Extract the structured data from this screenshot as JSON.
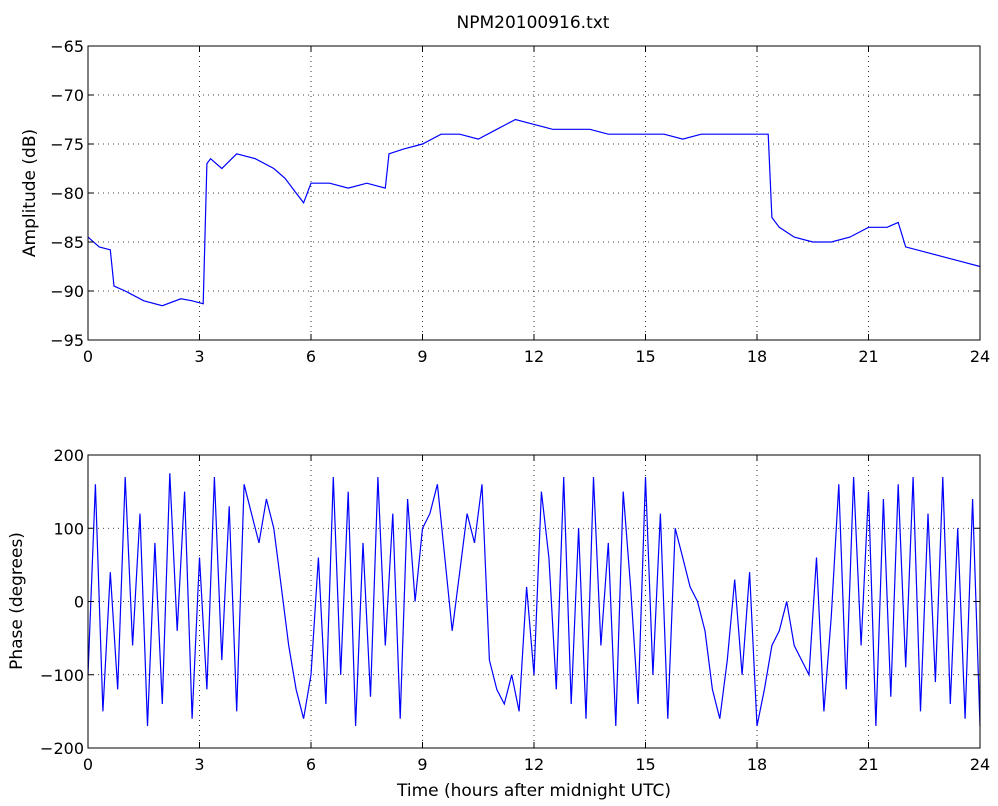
{
  "figure": {
    "title": "NPM20100916.txt"
  },
  "chart_data": [
    {
      "type": "line",
      "title": "NPM20100916.txt",
      "xlabel": "",
      "ylabel": "Amplitude (dB)",
      "xlim": [
        0,
        24
      ],
      "ylim": [
        -95,
        -65
      ],
      "x_ticks": [
        0,
        3,
        6,
        9,
        12,
        15,
        18,
        21,
        24
      ],
      "y_ticks": [
        -95,
        -90,
        -85,
        -80,
        -75,
        -70,
        -65
      ],
      "grid": true,
      "line_color": "#0000ff",
      "series": [
        {
          "x": [
            0,
            0.3,
            0.6,
            0.7,
            1.0,
            1.5,
            2.0,
            2.5,
            2.8,
            3.1,
            3.2,
            3.3,
            3.6,
            4.0,
            4.5,
            5.0,
            5.3,
            5.6,
            5.8,
            6.0,
            6.5,
            7.0,
            7.5,
            8.0,
            8.1,
            8.5,
            9.0,
            9.5,
            10.0,
            10.5,
            11.0,
            11.5,
            12.0,
            12.5,
            13.0,
            13.5,
            14.0,
            14.5,
            15.0,
            15.5,
            16.0,
            16.5,
            17.0,
            17.5,
            18.0,
            18.3,
            18.4,
            18.6,
            19.0,
            19.5,
            20.0,
            20.5,
            21.0,
            21.5,
            21.8,
            22.0,
            22.5,
            23.0,
            23.5,
            24.0
          ],
          "values": [
            -84.5,
            -85.5,
            -85.8,
            -89.5,
            -90.0,
            -91.0,
            -91.5,
            -90.8,
            -91.0,
            -91.3,
            -77.0,
            -76.5,
            -77.5,
            -76.0,
            -76.5,
            -77.5,
            -78.5,
            -80.0,
            -81.0,
            -79.0,
            -79.0,
            -79.5,
            -79.0,
            -79.5,
            -76.0,
            -75.5,
            -75.0,
            -74.0,
            -74.0,
            -74.5,
            -73.5,
            -72.5,
            -73.0,
            -73.5,
            -73.5,
            -73.5,
            -74.0,
            -74.0,
            -74.0,
            -74.0,
            -74.5,
            -74.0,
            -74.0,
            -74.0,
            -74.0,
            -74.0,
            -82.5,
            -83.5,
            -84.5,
            -85.0,
            -85.0,
            -84.5,
            -83.5,
            -83.5,
            -83.0,
            -85.5,
            -86.0,
            -86.5,
            -87.0,
            -87.5
          ]
        }
      ]
    },
    {
      "type": "line",
      "title": "",
      "xlabel": "Time (hours after midnight UTC)",
      "ylabel": "Phase (degrees)",
      "xlim": [
        0,
        24
      ],
      "ylim": [
        -200,
        200
      ],
      "x_ticks": [
        0,
        3,
        6,
        9,
        12,
        15,
        18,
        21,
        24
      ],
      "y_ticks": [
        -200,
        -100,
        0,
        100,
        200
      ],
      "grid": true,
      "line_color": "#0000ff",
      "series": [
        {
          "x": [
            0,
            0.2,
            0.4,
            0.6,
            0.8,
            1.0,
            1.2,
            1.4,
            1.6,
            1.8,
            2.0,
            2.2,
            2.4,
            2.6,
            2.8,
            3.0,
            3.2,
            3.4,
            3.6,
            3.8,
            4.0,
            4.2,
            4.4,
            4.6,
            4.8,
            5.0,
            5.2,
            5.4,
            5.6,
            5.8,
            6.0,
            6.2,
            6.4,
            6.6,
            6.8,
            7.0,
            7.2,
            7.4,
            7.6,
            7.8,
            8.0,
            8.2,
            8.4,
            8.6,
            8.8,
            9.0,
            9.2,
            9.4,
            9.6,
            9.8,
            10.0,
            10.2,
            10.4,
            10.6,
            10.8,
            11.0,
            11.2,
            11.4,
            11.6,
            11.8,
            12.0,
            12.2,
            12.4,
            12.6,
            12.8,
            13.0,
            13.2,
            13.4,
            13.6,
            13.8,
            14.0,
            14.2,
            14.4,
            14.6,
            14.8,
            15.0,
            15.2,
            15.4,
            15.6,
            15.8,
            16.0,
            16.2,
            16.4,
            16.6,
            16.8,
            17.0,
            17.2,
            17.4,
            17.6,
            17.8,
            18.0,
            18.2,
            18.4,
            18.6,
            18.8,
            19.0,
            19.2,
            19.4,
            19.6,
            19.8,
            20.0,
            20.2,
            20.4,
            20.6,
            20.8,
            21.0,
            21.2,
            21.4,
            21.6,
            21.8,
            22.0,
            22.2,
            22.4,
            22.6,
            22.8,
            23.0,
            23.2,
            23.4,
            23.6,
            23.8,
            24.0
          ],
          "values": [
            -100,
            160,
            -150,
            40,
            -120,
            170,
            -60,
            120,
            -170,
            80,
            -140,
            175,
            -40,
            150,
            -160,
            60,
            -120,
            170,
            -80,
            130,
            -150,
            160,
            120,
            80,
            140,
            100,
            20,
            -60,
            -120,
            -160,
            -100,
            60,
            -140,
            170,
            -100,
            150,
            -170,
            80,
            -130,
            170,
            -60,
            120,
            -160,
            140,
            0,
            100,
            120,
            160,
            60,
            -40,
            40,
            120,
            80,
            160,
            -80,
            -120,
            -140,
            -100,
            -150,
            20,
            -100,
            150,
            60,
            -120,
            170,
            -140,
            100,
            -160,
            170,
            -60,
            80,
            -170,
            150,
            20,
            -140,
            170,
            -100,
            120,
            -160,
            100,
            60,
            20,
            0,
            -40,
            -120,
            -160,
            -80,
            30,
            -100,
            40,
            -170,
            -120,
            -60,
            -40,
            0,
            -60,
            -80,
            -100,
            60,
            -150,
            -20,
            160,
            -120,
            170,
            -60,
            150,
            -170,
            140,
            -130,
            160,
            -90,
            170,
            -150,
            120,
            -110,
            170,
            -140,
            100,
            -160,
            140,
            -170
          ]
        }
      ]
    }
  ]
}
